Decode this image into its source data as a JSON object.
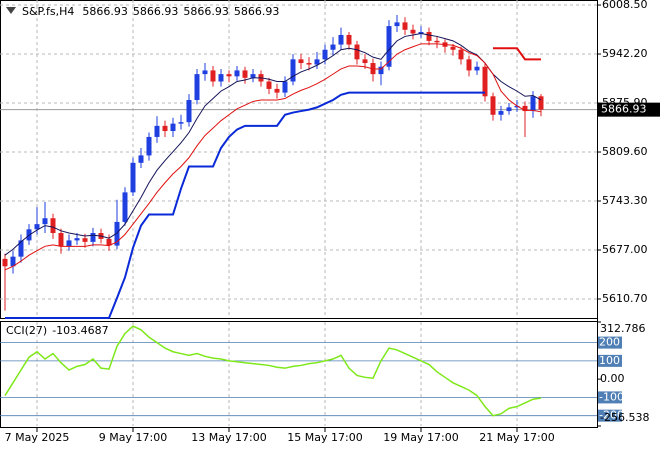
{
  "chart_data": {
    "type": "candlestick",
    "title": "S&P.fs,H4",
    "header_values": [
      5866.93,
      5866.93,
      5866.93,
      5866.93
    ],
    "current_price": 5866.93,
    "categories": [
      null,
      null,
      null,
      null,
      "7 May 2025",
      null,
      null,
      null,
      null,
      null,
      null,
      null,
      null,
      null,
      null,
      null,
      "9 May 17:00",
      null,
      null,
      null,
      null,
      null,
      null,
      null,
      null,
      null,
      null,
      null,
      "13 May 17:00",
      null,
      null,
      null,
      null,
      null,
      null,
      null,
      null,
      null,
      null,
      null,
      "15 May 17:00",
      null,
      null,
      null,
      null,
      null,
      null,
      null,
      null,
      null,
      null,
      null,
      "19 May 17:00",
      null,
      null,
      null,
      null,
      null,
      null,
      null,
      null,
      null,
      null,
      null,
      "21 May 17:00",
      null,
      null,
      null
    ],
    "open": [
      5665,
      5655,
      5668,
      5690,
      5705,
      5712,
      5720,
      5700,
      5682,
      5690,
      5693,
      5688,
      5700,
      5692,
      5683,
      5715,
      5755,
      5795,
      5805,
      5830,
      5845,
      5838,
      5848,
      5850,
      5880,
      5915,
      5920,
      5905,
      5915,
      5912,
      5920,
      5910,
      5915,
      5905,
      5895,
      5890,
      5905,
      5935,
      5930,
      5928,
      5935,
      5948,
      5955,
      5968,
      5955,
      5935,
      5930,
      5915,
      5925,
      5980,
      5985,
      5975,
      5970,
      5972,
      5960,
      5958,
      5952,
      5948,
      5935,
      5920,
      5925,
      5885,
      5860,
      5865,
      5870,
      5872,
      5865,
      5885
    ],
    "high": [
      5672,
      5676,
      5698,
      5712,
      5735,
      5742,
      5726,
      5706,
      5698,
      5700,
      5699,
      5707,
      5706,
      5698,
      5745,
      5762,
      5802,
      5815,
      5836,
      5858,
      5852,
      5856,
      5860,
      5888,
      5922,
      5930,
      5926,
      5922,
      5920,
      5926,
      5925,
      5922,
      5920,
      5910,
      5902,
      5912,
      5942,
      5942,
      5938,
      5945,
      5955,
      5965,
      5978,
      5972,
      5960,
      5942,
      5936,
      5932,
      5988,
      5995,
      5992,
      5982,
      5980,
      5978,
      5966,
      5962,
      5956,
      5952,
      5940,
      5932,
      5930,
      5890,
      5872,
      5876,
      5880,
      5878,
      5892,
      5888
    ],
    "low": [
      5595,
      5645,
      5660,
      5684,
      5698,
      5700,
      5692,
      5672,
      5676,
      5684,
      5680,
      5682,
      5686,
      5676,
      5678,
      5710,
      5750,
      5788,
      5798,
      5822,
      5830,
      5830,
      5840,
      5844,
      5874,
      5906,
      5898,
      5898,
      5904,
      5906,
      5902,
      5904,
      5898,
      5888,
      5882,
      5884,
      5900,
      5922,
      5920,
      5922,
      5928,
      5940,
      5948,
      5948,
      5928,
      5922,
      5905,
      5900,
      5920,
      5972,
      5968,
      5962,
      5964,
      5954,
      5950,
      5944,
      5940,
      5928,
      5912,
      5914,
      5878,
      5852,
      5852,
      5860,
      5864,
      5830,
      5856,
      5858
    ],
    "close": [
      5655,
      5668,
      5690,
      5705,
      5712,
      5720,
      5700,
      5682,
      5690,
      5693,
      5688,
      5700,
      5692,
      5683,
      5715,
      5755,
      5795,
      5805,
      5830,
      5845,
      5838,
      5848,
      5850,
      5880,
      5915,
      5920,
      5905,
      5915,
      5912,
      5920,
      5910,
      5915,
      5905,
      5895,
      5890,
      5905,
      5935,
      5930,
      5928,
      5935,
      5948,
      5955,
      5968,
      5955,
      5935,
      5930,
      5915,
      5925,
      5980,
      5985,
      5975,
      5970,
      5972,
      5960,
      5958,
      5952,
      5948,
      5935,
      5920,
      5925,
      5885,
      5860,
      5865,
      5870,
      5872,
      5865,
      5885,
      5866.93
    ],
    "up_color": "#1f3fe0",
    "down_color": "#e02020",
    "lines": [
      {
        "color": "#14145a",
        "width": 1,
        "values": [
          5670,
          5678,
          5688,
          5697,
          5704,
          5710,
          5708,
          5703,
          5700,
          5698,
          5696,
          5697,
          5696,
          5693,
          5700,
          5712,
          5730,
          5748,
          5768,
          5785,
          5798,
          5810,
          5822,
          5836,
          5855,
          5872,
          5882,
          5892,
          5898,
          5905,
          5907,
          5910,
          5910,
          5908,
          5905,
          5905,
          5912,
          5918,
          5922,
          5927,
          5933,
          5940,
          5948,
          5950,
          5948,
          5944,
          5938,
          5935,
          5948,
          5960,
          5966,
          5968,
          5970,
          5968,
          5966,
          5963,
          5960,
          5954,
          5946,
          5941,
          5930,
          5915,
          5905,
          5898,
          5892,
          5885,
          5886,
          5880
        ]
      },
      {
        "color": "#e01010",
        "width": 1,
        "values": [
          5650,
          5655,
          5662,
          5670,
          5676,
          5682,
          5684,
          5682,
          5682,
          5682,
          5682,
          5684,
          5684,
          5683,
          5688,
          5698,
          5712,
          5726,
          5740,
          5755,
          5768,
          5780,
          5790,
          5802,
          5818,
          5832,
          5842,
          5852,
          5860,
          5868,
          5873,
          5878,
          5880,
          5880,
          5880,
          5882,
          5888,
          5893,
          5897,
          5902,
          5908,
          5915,
          5922,
          5926,
          5926,
          5925,
          5922,
          5922,
          5932,
          5942,
          5948,
          5952,
          5956,
          5956,
          5956,
          5955,
          5954,
          5950,
          5944,
          5940,
          5930,
          5915,
          5892,
          5880,
          5872,
          5866,
          5866,
          5864
        ]
      },
      {
        "color": "#0a2ad8",
        "width": 2,
        "values": [
          5585,
          5585,
          5585,
          5585,
          5585,
          5585,
          5585,
          5585,
          5585,
          5585,
          5585,
          5585,
          5585,
          5585,
          5612,
          5640,
          5680,
          5710,
          5725,
          5725,
          5725,
          5725,
          5760,
          5790,
          5790,
          5790,
          5790,
          5815,
          5830,
          5840,
          5845,
          5845,
          5845,
          5845,
          5845,
          5860,
          5863,
          5865,
          5867,
          5870,
          5875,
          5880,
          5887,
          5890,
          5890,
          5890,
          5890,
          5890,
          5890,
          5890,
          5890,
          5890,
          5890,
          5890,
          5890,
          5890,
          5890,
          5890,
          5890,
          5890,
          5890,
          null,
          null,
          null,
          null,
          null,
          null,
          null
        ]
      },
      {
        "color": "#e01010",
        "width": 2,
        "values": [
          null,
          null,
          null,
          null,
          null,
          null,
          null,
          null,
          null,
          null,
          null,
          null,
          null,
          null,
          null,
          null,
          null,
          null,
          null,
          null,
          null,
          null,
          null,
          null,
          null,
          null,
          null,
          null,
          null,
          null,
          null,
          null,
          null,
          null,
          null,
          null,
          null,
          null,
          null,
          null,
          null,
          null,
          null,
          null,
          null,
          null,
          null,
          null,
          null,
          null,
          null,
          null,
          null,
          null,
          null,
          null,
          null,
          null,
          null,
          null,
          null,
          5950,
          5950,
          5950,
          5950,
          5935,
          5935,
          5935
        ]
      }
    ],
    "ylim": [
      5585,
      6015.3
    ],
    "yticks": [
      {
        "value": 6008.5,
        "label": "6008.50"
      },
      {
        "value": 5942.2,
        "label": "5942.20"
      },
      {
        "value": 5875.9,
        "label": "5875.90"
      },
      {
        "value": 5809.6,
        "label": "5809.60"
      },
      {
        "value": 5743.3,
        "label": "5743.30"
      },
      {
        "value": 5677,
        "label": "5677.00"
      },
      {
        "value": 5610.7,
        "label": "5610.70"
      }
    ],
    "grid": true,
    "cci": {
      "title": "CCI(27)",
      "current": -103.4687,
      "color": "#7ee81a",
      "values": [
        -90,
        -20,
        50,
        120,
        150,
        110,
        140,
        90,
        50,
        70,
        80,
        110,
        60,
        55,
        180,
        250,
        290,
        270,
        230,
        200,
        170,
        150,
        140,
        130,
        140,
        125,
        115,
        110,
        100,
        95,
        90,
        85,
        80,
        75,
        65,
        60,
        70,
        75,
        85,
        90,
        100,
        110,
        130,
        60,
        20,
        10,
        5,
        100,
        170,
        160,
        140,
        120,
        100,
        80,
        40,
        10,
        -20,
        -40,
        -60,
        -90,
        -150,
        -200,
        -190,
        -160,
        -150,
        -130,
        -110,
        -103.4687
      ],
      "ylim": [
        -256.538,
        312.786
      ],
      "yticks": [
        312.786,
        {
          "value": 0,
          "label": "0.00"
        },
        -256.538
      ],
      "levels": [
        200,
        100,
        -100,
        -200
      ],
      "level_color": "#4f7fb4"
    }
  }
}
